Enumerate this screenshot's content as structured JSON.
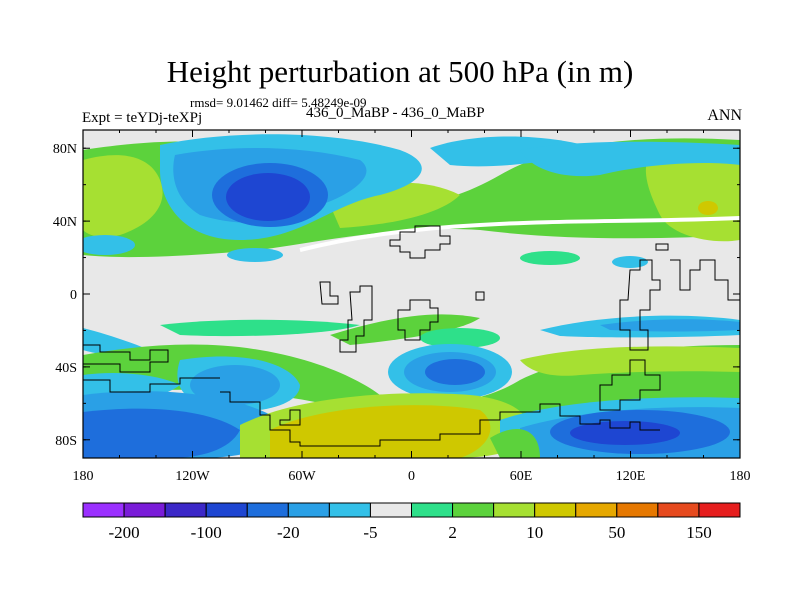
{
  "title": "Height perturbation at 500 hPa (in m)",
  "stats_line": "rmsd= 9.01462 diff= 5.48249e-09",
  "left_label": "Expt = teYDj-teXPj",
  "center_label": "436_0_MaBP - 436_0_MaBP",
  "right_label": "ANN",
  "x_ticks": [
    "180",
    "120W",
    "60W",
    "0",
    "60E",
    "120E",
    "180"
  ],
  "y_ticks": [
    "80N",
    "40N",
    "0",
    "40S",
    "80S"
  ],
  "colorbar": {
    "colors": [
      "#9b30ff",
      "#7a1cd8",
      "#3c28c8",
      "#1e46d2",
      "#1e6edc",
      "#2aa0e6",
      "#33c0e8",
      "#e8e8e8",
      "#2ee08a",
      "#5cd23c",
      "#a6e032",
      "#cfc800",
      "#e6a800",
      "#e67800",
      "#e64a1e",
      "#e61e1e"
    ],
    "labels": [
      "-200",
      "-100",
      "-20",
      "-5",
      "2",
      "10",
      "50",
      "150"
    ]
  }
}
